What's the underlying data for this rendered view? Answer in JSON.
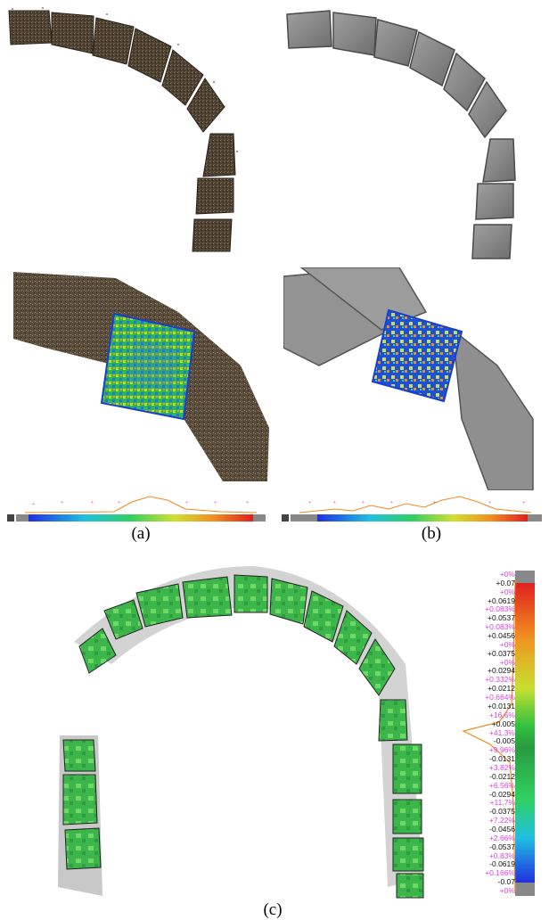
{
  "captions": {
    "a": "(a)",
    "b": "(b)",
    "c": "(c)"
  },
  "colors": {
    "stone_dark": "#4a3e30",
    "stone_light": "#6b5a44",
    "mesh_gray": "#8e8e8e",
    "mesh_dark": "#5a5a5a",
    "green_field": "#3cb54a",
    "light_green": "#7ee06a",
    "blue_border": "#1a3fd0",
    "hist_curve": "#f08a1e",
    "pink_text": "#e040e0"
  },
  "colorbar_c": {
    "values": [
      "+0.07",
      "+0.0619",
      "+0.0537",
      "+0.0456",
      "+0.0375",
      "+0.0294",
      "+0.0212",
      "+0.0131",
      "+0.005",
      "-0.005",
      "-0.0131",
      "-0.0212",
      "-0.0294",
      "-0.0375",
      "-0.0456",
      "-0.0537",
      "-0.0619",
      "-0.07"
    ],
    "percents": [
      "+0%",
      "+0%",
      "+0.083%",
      "+0.083%",
      "+0%",
      "+0%",
      "+0.332%",
      "+0.664%",
      "+16.6%",
      "+41.3%",
      "+9.96%",
      "+3.82%",
      "+6.56%",
      "+11.7%",
      "+7.22%",
      "+2.66%",
      "+0.83%",
      "+0.166%",
      "+0%"
    ]
  }
}
